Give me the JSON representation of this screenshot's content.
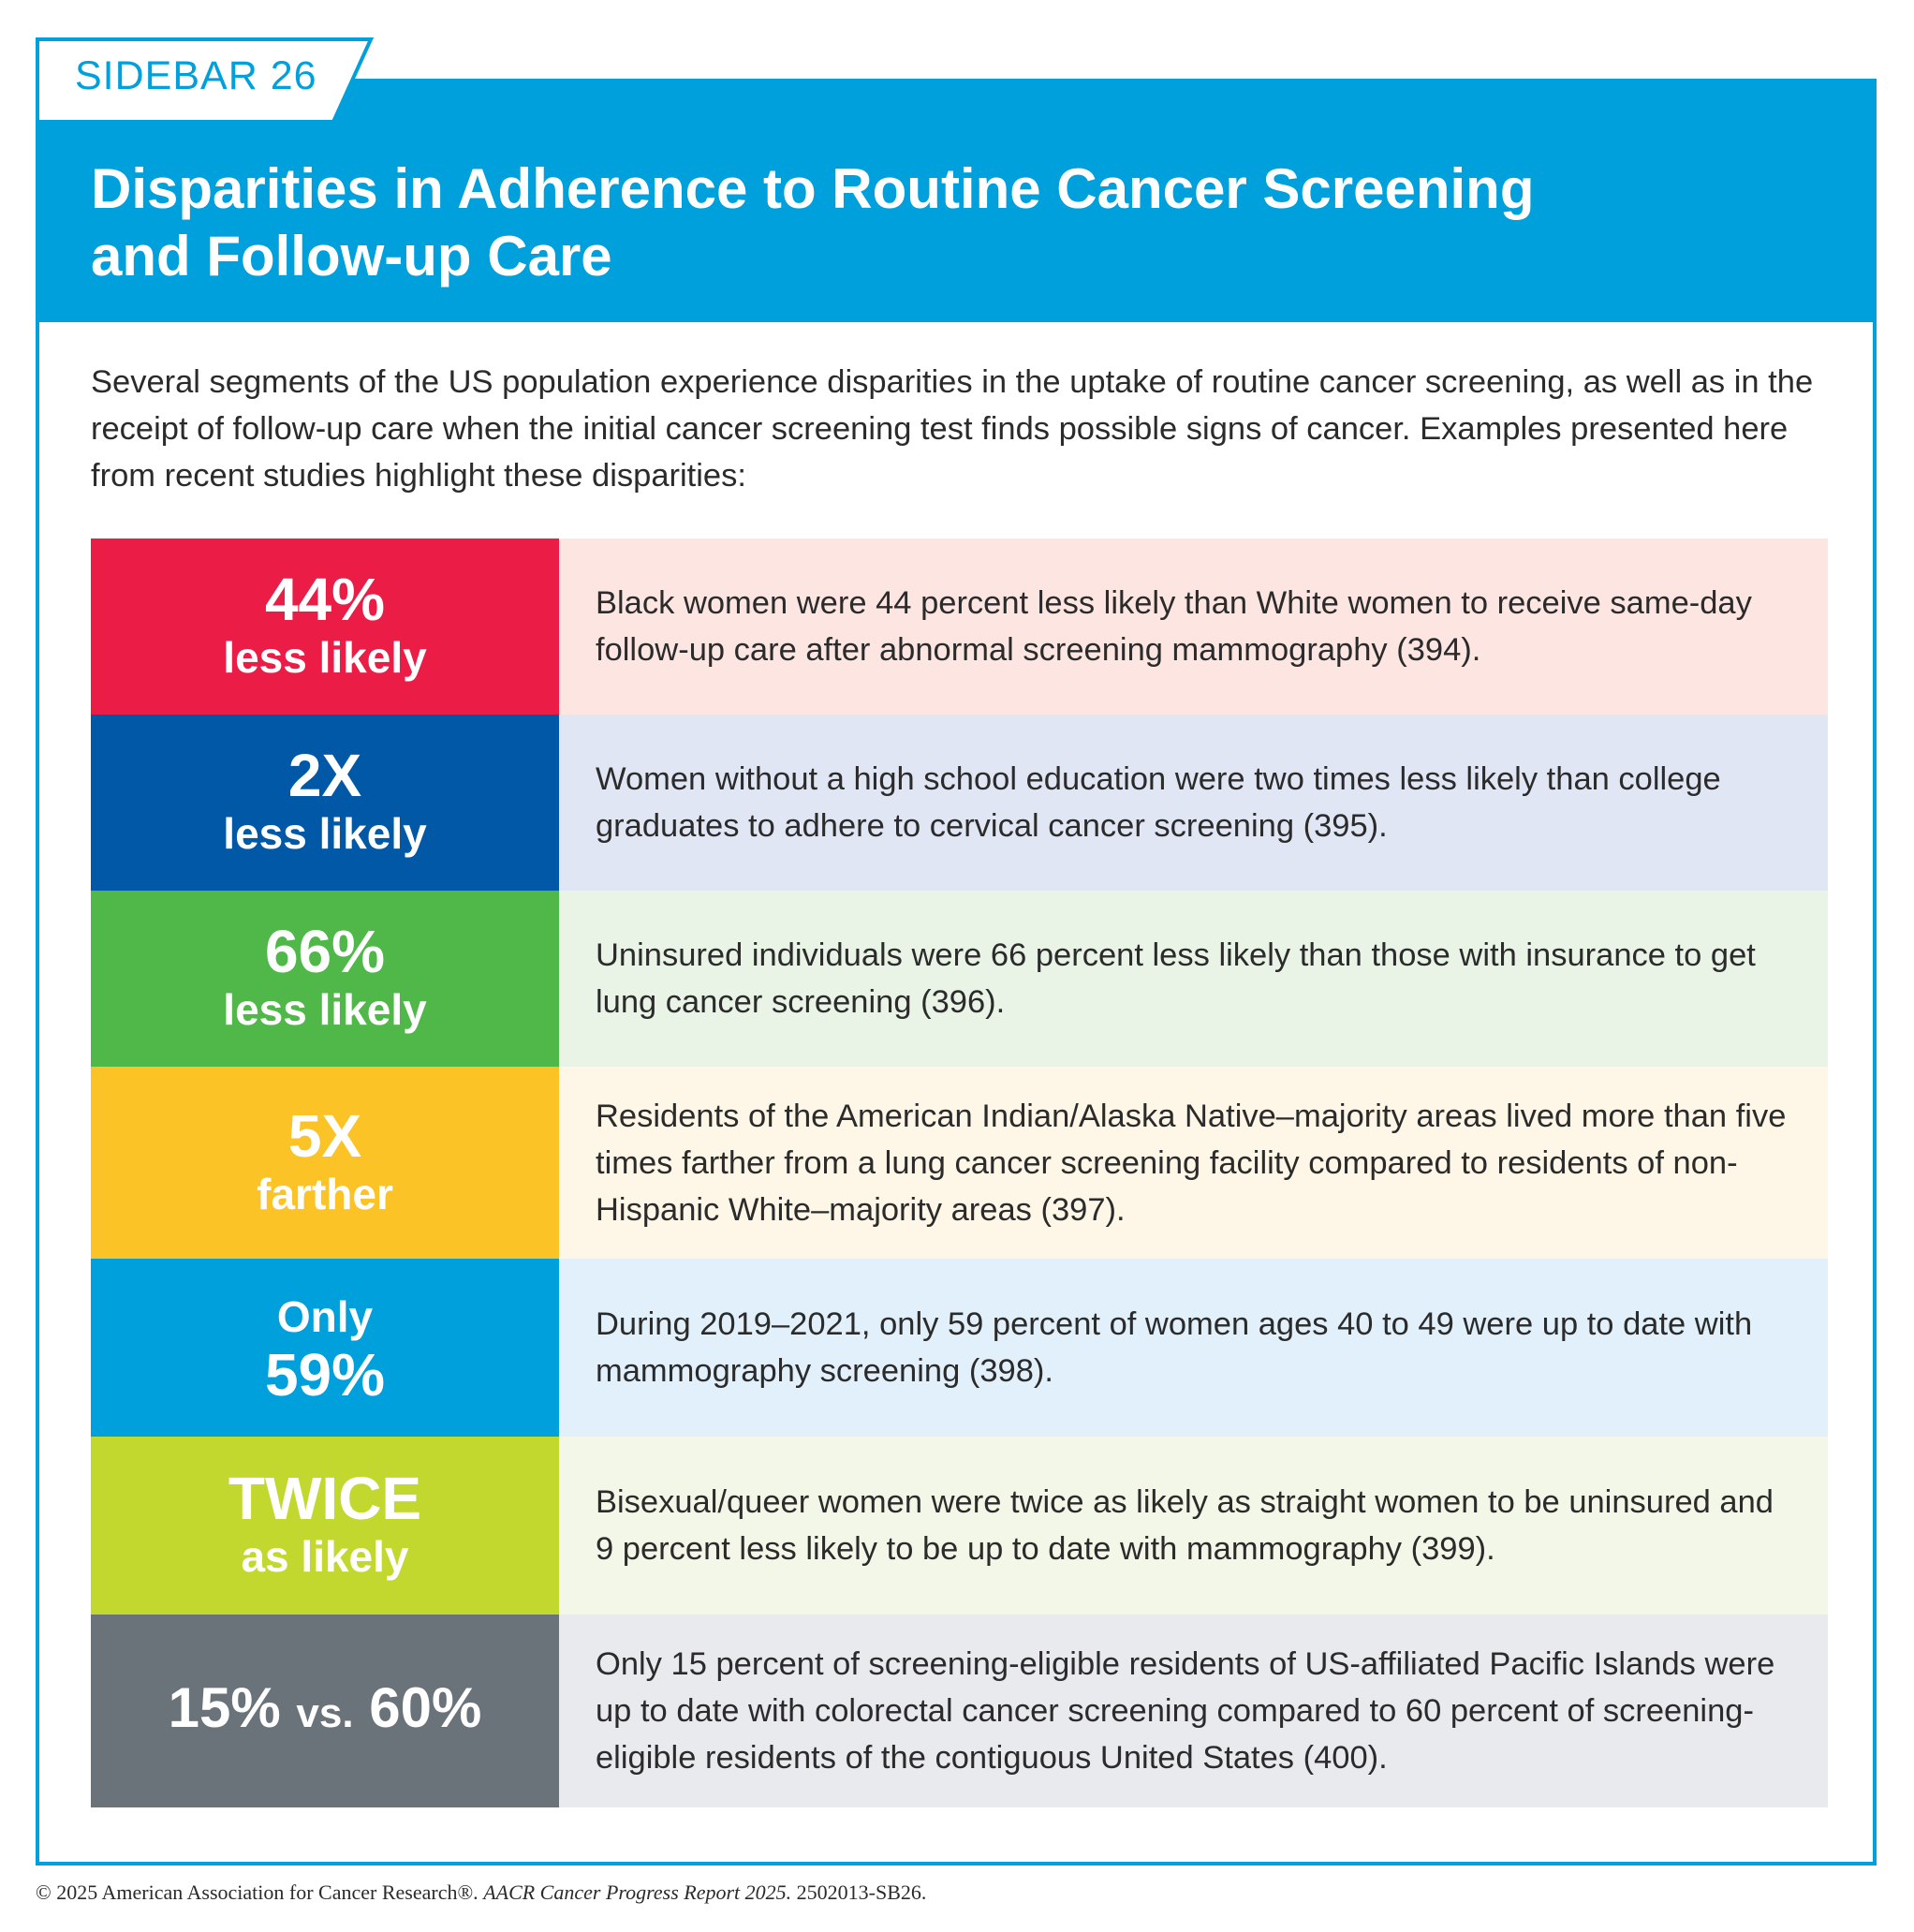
{
  "sidebar_label": "SIDEBAR 26",
  "title": "Disparities in Adherence to Routine Cancer Screening and Follow-up Care",
  "intro": "Several segments of the US population experience disparities in the uptake of routine cancer screening, as well as in the receipt of follow-up care when the initial cancer screening test finds possible signs of cancer. Examples presented here from recent studies highlight these disparities:",
  "colors": {
    "brand_blue": "#00a0dc"
  },
  "rows": [
    {
      "stat_top": "44%",
      "stat_bottom": "less likely",
      "text": "Black women were 44 percent less likely than White women to receive same-day follow-up care after abnormal screening mammography (394).",
      "stat_color": "#eb1c45",
      "bg_color": "#fde6e2"
    },
    {
      "stat_top": "2X",
      "stat_bottom": "less likely",
      "text": "Women without a high school education were two times less likely than college graduates to adhere to cervical cancer screening (395).",
      "stat_color": "#0058a6",
      "bg_color": "#e1e6f4"
    },
    {
      "stat_top": "66%",
      "stat_bottom": "less likely",
      "text": "Uninsured individuals were 66 percent less likely than those with insurance to get lung cancer screening (396).",
      "stat_color": "#4fb848",
      "bg_color": "#e9f3e6"
    },
    {
      "stat_top": "5X",
      "stat_bottom": "farther",
      "text": "Residents of the American Indian/Alaska Native–majority areas lived more than five times farther from a lung cancer screening facility compared to residents of non-Hispanic White–majority areas (397).",
      "stat_color": "#fcc326",
      "bg_color": "#fef6e7"
    },
    {
      "stat_top": "Only",
      "stat_bottom": "59%",
      "text": "During 2019–2021, only 59 percent of women ages 40 to 49 were up to date with mammography screening (398).",
      "stat_color": "#00a0dc",
      "bg_color": "#e1f0fa"
    },
    {
      "stat_top": "TWICE",
      "stat_bottom": "as likely",
      "text": "Bisexual/queer women were twice as likely as straight women to be uninsured and 9 percent less likely to be up to date with mammography (399).",
      "stat_color": "#c3d82f",
      "bg_color": "#f3f7e7"
    },
    {
      "stat_a": "15%",
      "stat_vs": "vs.",
      "stat_b": "60%",
      "text": "Only 15 percent of screening-eligible residents of US-affiliated Pacific Islands were up to date with colorectal cancer screening compared to 60 percent of screening-eligible residents of the contiguous United States (400).",
      "stat_color": "#6a727a",
      "bg_color": "#e8eaed"
    }
  ],
  "footer": {
    "copyright": "© 2025 American Association for Cancer Research®.",
    "report": "AACR Cancer Progress Report 2025.",
    "code": "2502013-SB26."
  }
}
